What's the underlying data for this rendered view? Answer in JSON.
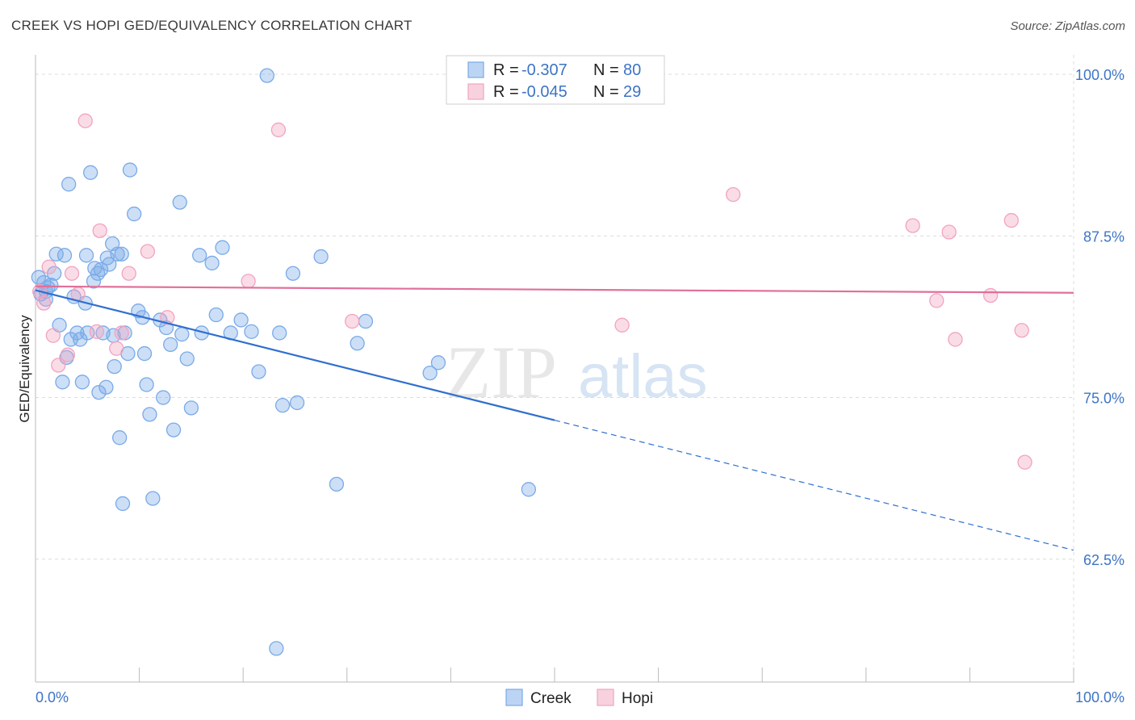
{
  "title": "CREEK VS HOPI GED/EQUIVALENCY CORRELATION CHART",
  "source": "Source: ZipAtlas.com",
  "chart_data": {
    "type": "scatter",
    "xlabel": "",
    "ylabel": "GED/Equivalency",
    "xlim": [
      0,
      100
    ],
    "ylim": [
      53,
      101.5
    ],
    "x_tick_labels": [
      "0.0%",
      "100.0%"
    ],
    "y_ticks": [
      62.5,
      75.0,
      87.5,
      100.0
    ],
    "y_tick_labels": [
      "62.5%",
      "75.0%",
      "87.5%",
      "100.0%"
    ],
    "grid": true,
    "legend": {
      "placement": "top-center",
      "entries": [
        {
          "r_label": "R =",
          "r_value": "-0.307",
          "n_label": "N =",
          "n_value": "80"
        },
        {
          "r_label": "R =",
          "r_value": "-0.045",
          "n_label": "N =",
          "n_value": "29"
        }
      ]
    },
    "series": [
      {
        "name": "Creek",
        "color": "#7aaae8",
        "line_color": "#2f6fcf",
        "trend": {
          "x0": 0,
          "y0": 83.3,
          "x1": 100,
          "y1": 63.2,
          "solid_until": 50
        },
        "points": [
          [
            0.3,
            84.3
          ],
          [
            0.5,
            83.0
          ],
          [
            0.8,
            83.9
          ],
          [
            1.0,
            82.6
          ],
          [
            1.2,
            83.5
          ],
          [
            1.5,
            83.7
          ],
          [
            1.8,
            84.6
          ],
          [
            2.0,
            86.1
          ],
          [
            2.3,
            80.6
          ],
          [
            2.6,
            76.2
          ],
          [
            2.8,
            86.0
          ],
          [
            3.2,
            91.5
          ],
          [
            3.4,
            79.5
          ],
          [
            3.7,
            82.8
          ],
          [
            4.0,
            80.0
          ],
          [
            4.3,
            79.5
          ],
          [
            4.5,
            76.2
          ],
          [
            4.8,
            82.3
          ],
          [
            4.9,
            86.0
          ],
          [
            5.3,
            92.4
          ],
          [
            5.6,
            84.0
          ],
          [
            5.7,
            85.0
          ],
          [
            6.0,
            84.6
          ],
          [
            6.1,
            75.4
          ],
          [
            6.3,
            84.9
          ],
          [
            6.5,
            80.0
          ],
          [
            6.8,
            75.8
          ],
          [
            6.9,
            85.8
          ],
          [
            7.1,
            85.3
          ],
          [
            7.4,
            86.9
          ],
          [
            7.6,
            77.4
          ],
          [
            7.9,
            86.1
          ],
          [
            8.1,
            71.9
          ],
          [
            8.3,
            86.1
          ],
          [
            8.4,
            66.8
          ],
          [
            8.6,
            80.0
          ],
          [
            8.9,
            78.4
          ],
          [
            9.1,
            92.6
          ],
          [
            9.5,
            89.2
          ],
          [
            9.9,
            81.7
          ],
          [
            10.3,
            81.2
          ],
          [
            10.5,
            78.4
          ],
          [
            10.7,
            76.0
          ],
          [
            11.0,
            73.7
          ],
          [
            11.3,
            67.2
          ],
          [
            12.3,
            75.0
          ],
          [
            12.6,
            80.4
          ],
          [
            13.0,
            79.1
          ],
          [
            13.3,
            72.5
          ],
          [
            13.9,
            90.1
          ],
          [
            14.1,
            79.9
          ],
          [
            14.6,
            78.0
          ],
          [
            15.0,
            74.2
          ],
          [
            15.8,
            86.0
          ],
          [
            17.0,
            85.4
          ],
          [
            17.4,
            81.4
          ],
          [
            18.0,
            86.6
          ],
          [
            18.8,
            80.0
          ],
          [
            19.8,
            81.0
          ],
          [
            20.8,
            80.1
          ],
          [
            21.5,
            77.0
          ],
          [
            22.3,
            99.9
          ],
          [
            23.2,
            55.6
          ],
          [
            23.5,
            80.0
          ],
          [
            23.8,
            74.4
          ],
          [
            24.8,
            84.6
          ],
          [
            25.2,
            74.6
          ],
          [
            27.5,
            85.9
          ],
          [
            29.0,
            68.3
          ],
          [
            31.0,
            79.2
          ],
          [
            31.8,
            80.9
          ],
          [
            38.0,
            76.9
          ],
          [
            38.8,
            77.7
          ],
          [
            47.5,
            67.9
          ],
          [
            1.0,
            83.2
          ],
          [
            3.0,
            78.1
          ],
          [
            5.0,
            80.0
          ],
          [
            7.5,
            79.8
          ],
          [
            12.0,
            81.0
          ],
          [
            16.0,
            80.0
          ]
        ]
      },
      {
        "name": "Hopi",
        "color": "#f2a3bf",
        "line_color": "#e0709a",
        "trend": {
          "x0": 0,
          "y0": 83.6,
          "x1": 100,
          "y1": 83.1,
          "solid_until": 100
        },
        "points": [
          [
            0.4,
            83.2
          ],
          [
            0.8,
            82.3
          ],
          [
            1.3,
            85.1
          ],
          [
            1.7,
            79.8
          ],
          [
            2.2,
            77.5
          ],
          [
            3.1,
            78.3
          ],
          [
            3.5,
            84.6
          ],
          [
            4.1,
            83.0
          ],
          [
            4.8,
            96.4
          ],
          [
            5.9,
            80.1
          ],
          [
            6.2,
            87.9
          ],
          [
            7.8,
            78.8
          ],
          [
            8.3,
            80.0
          ],
          [
            9.0,
            84.6
          ],
          [
            10.8,
            86.3
          ],
          [
            12.7,
            81.2
          ],
          [
            20.5,
            84.0
          ],
          [
            23.4,
            95.7
          ],
          [
            30.5,
            80.9
          ],
          [
            56.5,
            80.6
          ],
          [
            67.2,
            90.7
          ],
          [
            84.5,
            88.3
          ],
          [
            86.8,
            82.5
          ],
          [
            88.0,
            87.8
          ],
          [
            88.6,
            79.5
          ],
          [
            92.0,
            82.9
          ],
          [
            94.0,
            88.7
          ],
          [
            95.0,
            80.2
          ],
          [
            95.3,
            70.0
          ]
        ]
      }
    ]
  },
  "bottom_legend": [
    "Creek",
    "Hopi"
  ],
  "watermark": {
    "zip": "ZIP",
    "atlas": "atlas"
  }
}
